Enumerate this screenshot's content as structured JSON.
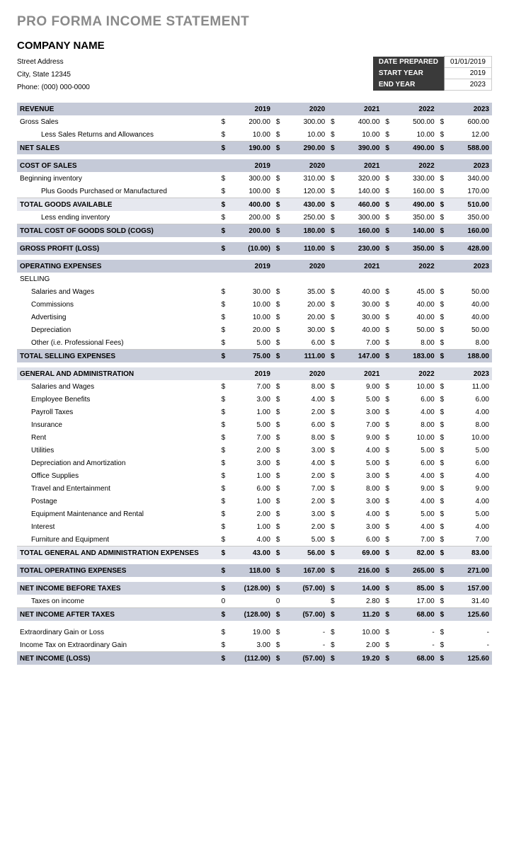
{
  "title": "PRO FORMA INCOME STATEMENT",
  "company": "COMPANY NAME",
  "address": {
    "street": "Street Address",
    "city": "City, State  12345",
    "phone": "Phone: (000) 000-0000"
  },
  "meta": {
    "date_prepared_label": "DATE PREPARED",
    "date_prepared": "01/01/2019",
    "start_year_label": "START YEAR",
    "start_year": "2019",
    "end_year_label": "END YEAR",
    "end_year": "2023"
  },
  "years": [
    "2019",
    "2020",
    "2021",
    "2022",
    "2023"
  ],
  "colors": {
    "header_band": "#c5cad8",
    "subheader_band": "#dee1e9",
    "total_band": "#e6e8ef",
    "total_band2": "#d0d4e0",
    "text": "#000000",
    "title_gray": "#8a8a8a",
    "meta_dark": "#3a3a3a"
  },
  "sections": {
    "revenue": {
      "label": "REVENUE",
      "rows": [
        {
          "label": "Gross Sales",
          "indent": 0,
          "vals": [
            "200.00",
            "300.00",
            "400.00",
            "500.00",
            "600.00"
          ]
        },
        {
          "label": "Less Sales Returns and Allowances",
          "indent": 2,
          "vals": [
            "10.00",
            "10.00",
            "10.00",
            "10.00",
            "12.00"
          ]
        }
      ],
      "net": {
        "label": "NET SALES",
        "vals": [
          "190.00",
          "290.00",
          "390.00",
          "490.00",
          "588.00"
        ]
      }
    },
    "cost": {
      "label": "COST OF SALES",
      "rows": [
        {
          "label": "Beginning inventory",
          "indent": 0,
          "vals": [
            "300.00",
            "310.00",
            "320.00",
            "330.00",
            "340.00"
          ]
        },
        {
          "label": "Plus Goods Purchased or Manufactured",
          "indent": 2,
          "vals": [
            "100.00",
            "120.00",
            "140.00",
            "160.00",
            "170.00"
          ]
        }
      ],
      "goods": {
        "label": "TOTAL GOODS AVAILABLE",
        "vals": [
          "400.00",
          "430.00",
          "460.00",
          "490.00",
          "510.00"
        ]
      },
      "less": {
        "label": "Less ending inventory",
        "indent": 2,
        "vals": [
          "200.00",
          "250.00",
          "300.00",
          "350.00",
          "350.00"
        ]
      },
      "cogs": {
        "label": "TOTAL COST OF GOODS SOLD (COGS)",
        "vals": [
          "200.00",
          "180.00",
          "160.00",
          "140.00",
          "160.00"
        ]
      },
      "gross": {
        "label": "GROSS PROFIT (LOSS)",
        "vals": [
          "(10.00)",
          "110.00",
          "230.00",
          "350.00",
          "428.00"
        ]
      }
    },
    "opex": {
      "label": "OPERATING EXPENSES",
      "selling_label": "SELLING",
      "selling": [
        {
          "label": "Salaries and Wages",
          "vals": [
            "30.00",
            "35.00",
            "40.00",
            "45.00",
            "50.00"
          ]
        },
        {
          "label": "Commissions",
          "vals": [
            "10.00",
            "20.00",
            "30.00",
            "40.00",
            "40.00"
          ]
        },
        {
          "label": "Advertising",
          "vals": [
            "10.00",
            "20.00",
            "30.00",
            "40.00",
            "40.00"
          ]
        },
        {
          "label": "Depreciation",
          "vals": [
            "20.00",
            "30.00",
            "40.00",
            "50.00",
            "50.00"
          ]
        },
        {
          "label": "Other  (i.e. Professional Fees)",
          "vals": [
            "5.00",
            "6.00",
            "7.00",
            "8.00",
            "8.00"
          ]
        }
      ],
      "selling_total": {
        "label": "TOTAL SELLING EXPENSES",
        "vals": [
          "75.00",
          "111.00",
          "147.00",
          "183.00",
          "188.00"
        ]
      }
    },
    "ga": {
      "label": "GENERAL AND ADMINISTRATION",
      "rows": [
        {
          "label": "Salaries and Wages",
          "vals": [
            "7.00",
            "8.00",
            "9.00",
            "10.00",
            "11.00"
          ]
        },
        {
          "label": "Employee Benefits",
          "vals": [
            "3.00",
            "4.00",
            "5.00",
            "6.00",
            "6.00"
          ]
        },
        {
          "label": "Payroll Taxes",
          "vals": [
            "1.00",
            "2.00",
            "3.00",
            "4.00",
            "4.00"
          ]
        },
        {
          "label": "Insurance",
          "vals": [
            "5.00",
            "6.00",
            "7.00",
            "8.00",
            "8.00"
          ]
        },
        {
          "label": "Rent",
          "vals": [
            "7.00",
            "8.00",
            "9.00",
            "10.00",
            "10.00"
          ]
        },
        {
          "label": "Utilities",
          "vals": [
            "2.00",
            "3.00",
            "4.00",
            "5.00",
            "5.00"
          ]
        },
        {
          "label": "Depreciation and Amortization",
          "vals": [
            "3.00",
            "4.00",
            "5.00",
            "6.00",
            "6.00"
          ]
        },
        {
          "label": "Office Supplies",
          "vals": [
            "1.00",
            "2.00",
            "3.00",
            "4.00",
            "4.00"
          ]
        },
        {
          "label": "Travel and Entertainment",
          "vals": [
            "6.00",
            "7.00",
            "8.00",
            "9.00",
            "9.00"
          ]
        },
        {
          "label": "Postage",
          "vals": [
            "1.00",
            "2.00",
            "3.00",
            "4.00",
            "4.00"
          ]
        },
        {
          "label": "Equipment Maintenance and Rental",
          "vals": [
            "2.00",
            "3.00",
            "4.00",
            "5.00",
            "5.00"
          ]
        },
        {
          "label": "Interest",
          "vals": [
            "1.00",
            "2.00",
            "3.00",
            "4.00",
            "4.00"
          ]
        },
        {
          "label": "Furniture and Equipment",
          "vals": [
            "4.00",
            "5.00",
            "6.00",
            "7.00",
            "7.00"
          ]
        }
      ],
      "total": {
        "label": "TOTAL GENERAL AND ADMINISTRATION EXPENSES",
        "vals": [
          "43.00",
          "56.00",
          "69.00",
          "82.00",
          "83.00"
        ]
      }
    },
    "totopex": {
      "label": "TOTAL OPERATING EXPENSES",
      "vals": [
        "118.00",
        "167.00",
        "216.00",
        "265.00",
        "271.00"
      ]
    },
    "bottom": {
      "nibt": {
        "label": "NET INCOME BEFORE TAXES",
        "vals": [
          "(128.00)",
          "(57.00)",
          "14.00",
          "85.00",
          "157.00"
        ]
      },
      "tax": {
        "label": "Taxes on income",
        "sym": [
          "0",
          "0",
          "$",
          "$",
          "$"
        ],
        "vals": [
          "",
          "",
          "2.80",
          "17.00",
          "31.40"
        ]
      },
      "niat": {
        "label": "NET INCOME AFTER TAXES",
        "vals": [
          "(128.00)",
          "(57.00)",
          "11.20",
          "68.00",
          "125.60"
        ]
      },
      "extra_gain": {
        "label": "Extraordinary Gain or Loss",
        "vals": [
          "19.00",
          "-",
          "10.00",
          "-",
          "-"
        ]
      },
      "extra_tax": {
        "label": "Income Tax on Extraordinary Gain",
        "vals": [
          "3.00",
          "-",
          "2.00",
          "-",
          "-"
        ]
      },
      "net": {
        "label": "NET INCOME (LOSS)",
        "vals": [
          "(112.00)",
          "(57.00)",
          "19.20",
          "68.00",
          "125.60"
        ]
      }
    }
  }
}
